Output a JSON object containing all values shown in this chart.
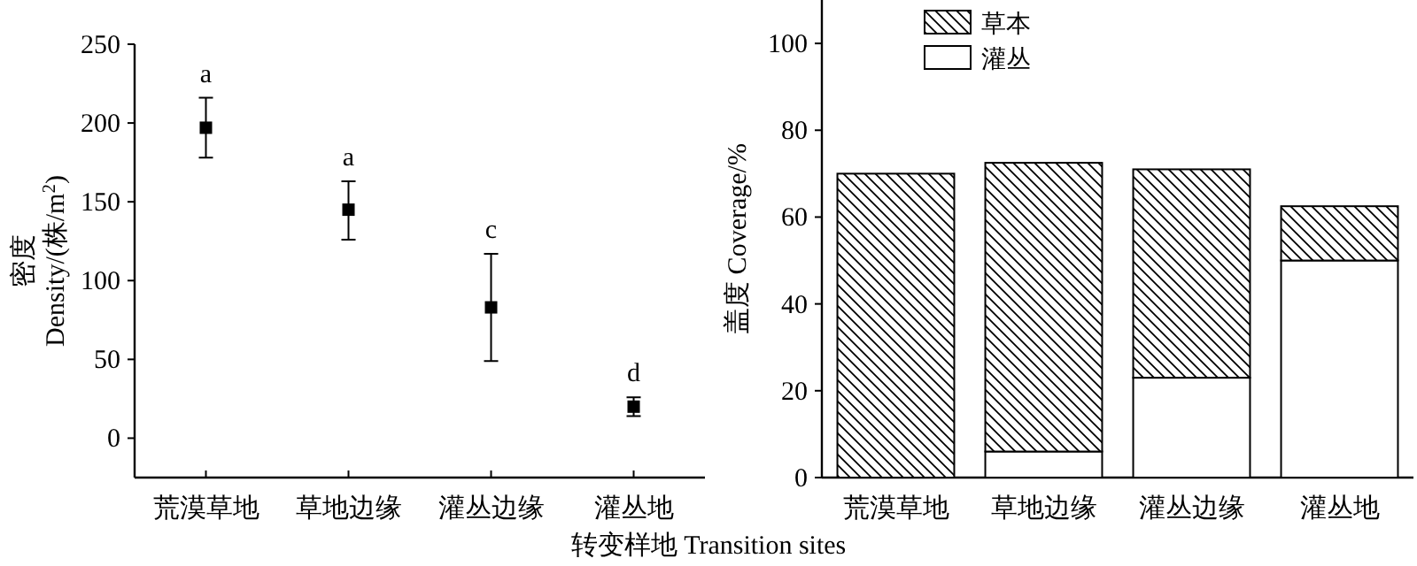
{
  "chart_data": [
    {
      "type": "scatter",
      "categories": [
        "荒漠草地",
        "草地边缘",
        "灌丛边缘",
        "灌丛地"
      ],
      "ylabel": "密度 Density/(株/m$^{2}$)",
      "xlabel": "转变样地 Transition sites",
      "ylim": [
        -25,
        250
      ],
      "yticks": [
        0,
        50,
        100,
        150,
        200,
        250
      ],
      "marker": "square",
      "series": [
        {
          "color": "#000000",
          "values": [
            197,
            145,
            83,
            20
          ],
          "errors": [
            [
              178,
              216
            ],
            [
              126,
              163
            ],
            [
              49,
              117
            ],
            [
              14,
              26
            ]
          ]
        }
      ],
      "annotations": [
        "a",
        "a",
        "c",
        "d"
      ]
    },
    {
      "type": "bar",
      "stacked": true,
      "categories": [
        "荒漠草地",
        "草地边缘",
        "灌丛边缘",
        "灌丛地"
      ],
      "ylabel": "盖度 Coverage/%",
      "ylim": [
        0,
        110
      ],
      "yticks": [
        0,
        20,
        40,
        60,
        80,
        100
      ],
      "legend": "top left",
      "series": [
        {
          "name": "灌丛",
          "color": "#ffffff",
          "values": [
            0,
            6,
            23,
            50
          ]
        },
        {
          "name": "草本",
          "color": "#000000",
          "values": [
            70,
            66.5,
            48,
            12.5
          ]
        }
      ]
    }
  ]
}
